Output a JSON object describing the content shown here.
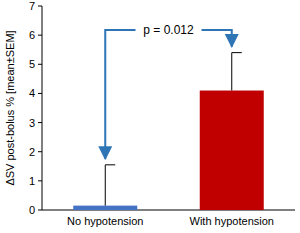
{
  "chart_data": {
    "type": "bar",
    "y_label": "ΔSV post-bolus % [mean±SEM]",
    "categories": [
      "No hypotension",
      "With hypotension"
    ],
    "values": [
      0.15,
      4.1
    ],
    "errors": [
      1.4,
      1.3
    ],
    "colors": [
      "#4472c4",
      "#c00000"
    ],
    "ylim": [
      0,
      7
    ],
    "yticks": [
      0,
      1,
      2,
      3,
      4,
      5,
      6,
      7
    ],
    "annotation": "p = 0.012"
  }
}
